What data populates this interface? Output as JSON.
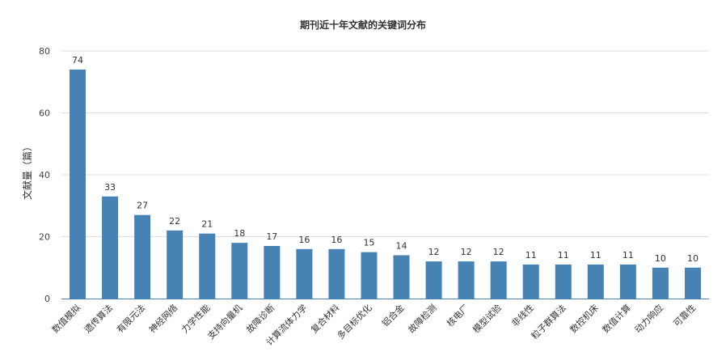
{
  "chart_data": {
    "type": "bar",
    "title": "期刊近十年文献的关键词分布",
    "ylabel": "文献量（篇）",
    "xlabel": "",
    "ylim": [
      0,
      80
    ],
    "yticks": [
      0,
      20,
      40,
      60,
      80
    ],
    "grid": true,
    "bar_color": "#4682b4",
    "categories": [
      "数值模拟",
      "遗传算法",
      "有限元法",
      "神经网络",
      "力学性能",
      "支持向量机",
      "故障诊断",
      "计算流体力学",
      "复合材料",
      "多目标优化",
      "铝合金",
      "故障检测",
      "核电厂",
      "模型试验",
      "非线性",
      "粒子群算法",
      "数控机床",
      "数值计算",
      "动力响应",
      "可靠性"
    ],
    "values": [
      74,
      33,
      27,
      22,
      21,
      18,
      17,
      16,
      16,
      15,
      14,
      12,
      12,
      12,
      11,
      11,
      11,
      11,
      10,
      10
    ]
  }
}
